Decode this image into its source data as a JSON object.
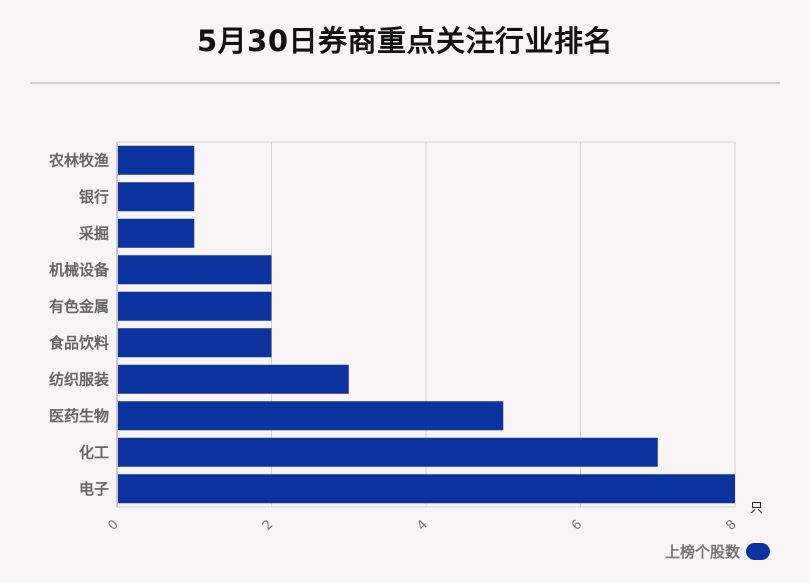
{
  "title": "5月30日券商重点关注行业排名",
  "chart_data": {
    "type": "bar",
    "orientation": "horizontal",
    "categories": [
      "农林牧渔",
      "银行",
      "采掘",
      "机械设备",
      "有色金属",
      "食品饮料",
      "纺织服装",
      "医药生物",
      "化工",
      "电子"
    ],
    "series": [
      {
        "name": "上榜个股数",
        "values": [
          1,
          1,
          1,
          2,
          2,
          2,
          3,
          5,
          7,
          8
        ],
        "color": "#0c329d"
      }
    ],
    "xlim": [
      0,
      8
    ],
    "xticks": [
      0,
      2,
      4,
      6,
      8
    ],
    "xunit": "只",
    "grid": true,
    "legend_position": "bottom-right"
  }
}
